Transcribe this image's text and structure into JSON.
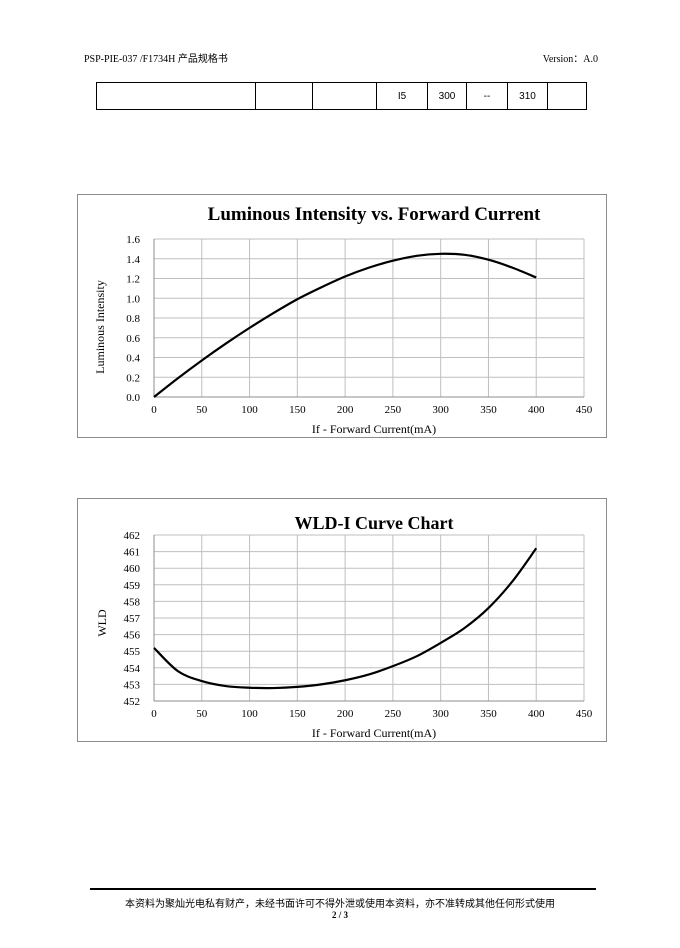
{
  "header": {
    "doc_code": "PSP-PIE-037 /F1734H 产品规格书",
    "version": "Version：A.0"
  },
  "spec_row": [
    "",
    "",
    "",
    "I5",
    "300",
    "--",
    "310",
    ""
  ],
  "footer": {
    "notice": "本资料为聚灿光电私有财产，未经书面许可不得外泄或使用本资料，亦不准转成其他任何形式使用",
    "page": "2 / 3"
  },
  "chart_data": [
    {
      "type": "line",
      "title": "Luminous Intensity vs. Forward Current",
      "xlabel": "If - Forward Current(mA)",
      "ylabel": "Luminous Intensity",
      "xlim": [
        0,
        450
      ],
      "ylim": [
        0,
        1.6
      ],
      "xticks": [
        "0",
        "50",
        "100",
        "150",
        "200",
        "250",
        "300",
        "350",
        "400",
        "450"
      ],
      "yticks": [
        "0.0",
        "0.2",
        "0.4",
        "0.6",
        "0.8",
        "1.0",
        "1.2",
        "1.4",
        "1.6"
      ],
      "grid": true,
      "series": [
        {
          "x": [
            0,
            25,
            50,
            75,
            100,
            125,
            150,
            175,
            200,
            225,
            250,
            275,
            300,
            325,
            350,
            375,
            400
          ],
          "y": [
            0.0,
            0.19,
            0.37,
            0.54,
            0.7,
            0.85,
            0.99,
            1.11,
            1.22,
            1.31,
            1.38,
            1.43,
            1.45,
            1.44,
            1.39,
            1.31,
            1.21
          ]
        }
      ]
    },
    {
      "type": "line",
      "title": "WLD-I Curve Chart",
      "xlabel": "If - Forward Current(mA)",
      "ylabel": "WLD",
      "xlim": [
        0,
        450
      ],
      "ylim": [
        452,
        462
      ],
      "xticks": [
        "0",
        "50",
        "100",
        "150",
        "200",
        "250",
        "300",
        "350",
        "400",
        "450"
      ],
      "yticks": [
        "452",
        "453",
        "454",
        "455",
        "456",
        "457",
        "458",
        "459",
        "460",
        "461",
        "462"
      ],
      "grid": true,
      "series": [
        {
          "x": [
            0,
            25,
            50,
            75,
            100,
            125,
            150,
            175,
            200,
            225,
            250,
            275,
            300,
            325,
            350,
            375,
            400
          ],
          "y": [
            455.2,
            453.8,
            453.2,
            452.9,
            452.8,
            452.78,
            452.85,
            453.0,
            453.25,
            453.6,
            454.1,
            454.7,
            455.5,
            456.4,
            457.6,
            459.2,
            461.2
          ]
        }
      ]
    }
  ]
}
